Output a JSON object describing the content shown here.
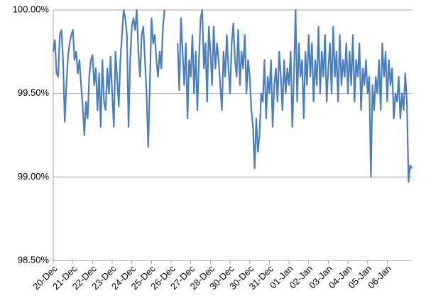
{
  "chart_data": {
    "type": "line",
    "color": "#4a7ebb",
    "grid": true,
    "ylim": [
      98.5,
      100
    ],
    "yticks": [
      {
        "value": 98.5,
        "label": "98.50%"
      },
      {
        "value": 99,
        "label": "99.00%"
      },
      {
        "value": 99.5,
        "label": "99.50%"
      },
      {
        "value": 100,
        "label": "100.00%"
      }
    ],
    "categories": [
      "20-Dec",
      null,
      null,
      null,
      null,
      null,
      null,
      null,
      null,
      null,
      null,
      null,
      "21-Dec",
      null,
      null,
      null,
      null,
      null,
      null,
      null,
      null,
      null,
      null,
      null,
      "22-Dec",
      null,
      null,
      null,
      null,
      null,
      null,
      null,
      null,
      null,
      null,
      null,
      "23-Dec",
      null,
      null,
      null,
      null,
      null,
      null,
      null,
      null,
      null,
      null,
      null,
      "24-Dec",
      null,
      null,
      null,
      null,
      null,
      null,
      null,
      null,
      null,
      null,
      null,
      "25-Dec",
      null,
      null,
      null,
      null,
      null,
      null,
      null,
      null,
      null,
      null,
      null,
      "26-Dec",
      null,
      null,
      null,
      null,
      null,
      null,
      null,
      null,
      null,
      null,
      null,
      "27-Dec",
      null,
      null,
      null,
      null,
      null,
      null,
      null,
      null,
      null,
      null,
      null,
      "28-Dec",
      null,
      null,
      null,
      null,
      null,
      null,
      null,
      null,
      null,
      null,
      null,
      "30-Dec",
      null,
      null,
      null,
      null,
      null,
      null,
      null,
      null,
      null,
      null,
      null,
      "30-Dec",
      null,
      null,
      null,
      null,
      null,
      null,
      null,
      null,
      null,
      null,
      null,
      "31-Dec",
      null,
      null,
      null,
      null,
      null,
      null,
      null,
      null,
      null,
      null,
      null,
      "01-Jan",
      null,
      null,
      null,
      null,
      null,
      null,
      null,
      null,
      null,
      null,
      null,
      "02-Jan",
      null,
      null,
      null,
      null,
      null,
      null,
      null,
      null,
      null,
      null,
      null,
      "03-Jan",
      null,
      null,
      null,
      null,
      null,
      null,
      null,
      null,
      null,
      null,
      null,
      "04-Jan",
      null,
      null,
      null,
      null,
      null,
      null,
      null,
      null,
      null,
      null,
      null,
      "05-Jan",
      null,
      null,
      null,
      null,
      null,
      null,
      null,
      null,
      null,
      null,
      null,
      "06-Jan",
      null,
      null,
      null,
      null,
      null,
      null,
      null,
      null,
      null,
      null,
      null,
      null,
      null,
      null,
      null
    ],
    "values": [
      99.75,
      99.82,
      99.62,
      99.6,
      99.85,
      99.88,
      99.7,
      99.33,
      99.55,
      99.72,
      99.8,
      99.85,
      99.88,
      99.7,
      99.75,
      99.62,
      99.7,
      99.55,
      99.42,
      99.25,
      99.45,
      99.35,
      99.6,
      99.7,
      99.73,
      99.55,
      99.65,
      99.4,
      99.62,
      99.3,
      99.7,
      99.45,
      99.4,
      99.65,
      99.5,
      99.72,
      99.5,
      99.3,
      99.75,
      99.6,
      99.42,
      99.7,
      99.85,
      100,
      99.95,
      99.85,
      99.3,
      99.7,
      99.9,
      99.95,
      99.88,
      100,
      99.75,
      99.6,
      99.85,
      99.9,
      99.7,
      99.5,
      99.18,
      99.55,
      99.95,
      99.8,
      99.85,
      99.7,
      99.6,
      99.75,
      99.65,
      99.9,
      100,
      null,
      null,
      null,
      null,
      null,
      null,
      null,
      99.8,
      99.52,
      99.95,
      99.75,
      99.55,
      99.8,
      99.35,
      99.7,
      99.6,
      99.85,
      99.5,
      99.75,
      99.4,
      99.7,
      99.95,
      100,
      99.65,
      99.8,
      99.45,
      99.9,
      99.75,
      99.55,
      99.9,
      99.65,
      99.8,
      99.7,
      99.55,
      99.4,
      99.75,
      99.6,
      99.85,
      99.65,
      99.5,
      99.8,
      99.92,
      99.7,
      99.6,
      99.88,
      99.55,
      99.75,
      99.65,
      99.85,
      99.5,
      99.7,
      99.6,
      99.4,
      99.3,
      99.05,
      99.35,
      99.15,
      99.25,
      99.5,
      99.45,
      99.7,
      99.35,
      99.6,
      99.5,
      99.7,
      99.3,
      99.55,
      99.65,
      99.45,
      99.75,
      99.6,
      99.4,
      99.7,
      99.5,
      99.65,
      99.55,
      99.75,
      99.3,
      99.6,
      100,
      99.45,
      99.8,
      99.6,
      99.7,
      99.35,
      99.75,
      99.55,
      99.85,
      99.6,
      99.8,
      99.45,
      99.7,
      99.55,
      99.9,
      99.5,
      99.75,
      99.6,
      99.85,
      99.45,
      99.65,
      99.8,
      99.5,
      99.9,
      99.6,
      99.75,
      99.45,
      99.85,
      99.55,
      99.7,
      99.6,
      99.8,
      99.5,
      99.75,
      99.55,
      99.85,
      99.45,
      99.7,
      99.6,
      99.8,
      99.4,
      99.65,
      99.55,
      99.7,
      99.5,
      99.6,
      99.0,
      99.55,
      99.4,
      99.6,
      99.5,
      99.7,
      99.4,
      99.8,
      99.6,
      99.75,
      99.45,
      99.7,
      99.55,
      99.65,
      99.35,
      99.5,
      99.45,
      99.6,
      99.35,
      99.5,
      99.4,
      99.62,
      99.45,
      98.97,
      99.07,
      99.05
    ]
  }
}
